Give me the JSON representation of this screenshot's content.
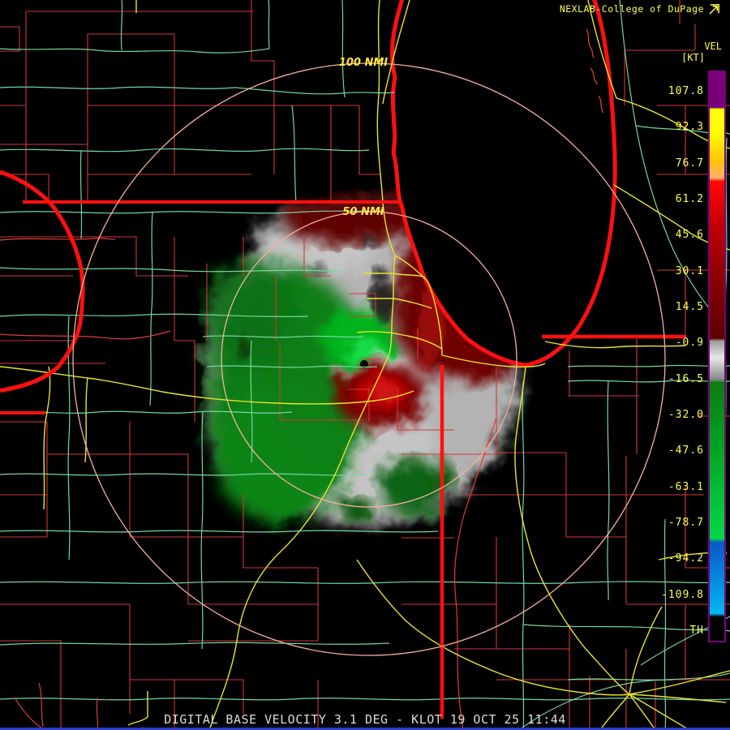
{
  "header": {
    "brand": "NEXLAB-College of DuPage",
    "logo_icon": "cod-arrow-icon"
  },
  "scale": {
    "title": "VEL",
    "units": "[KT]",
    "ticks": [
      "107.8",
      "92.3",
      "76.7",
      "61.2",
      "45.6",
      "30.1",
      "14.5",
      "-0.9",
      "-16.5",
      "-32.0",
      "-47.6",
      "-63.1",
      "-78.7",
      "-94.2",
      "-109.8",
      "TH"
    ],
    "palette": {
      "high_purple": "#7a007a",
      "yellow": "#ffff00",
      "orange": "#ffb06e",
      "red": "#ff0a00",
      "dark_red": "#5a0000",
      "zero_gray": "#e8e8e8",
      "dark_green": "#0b7c10",
      "bright_green": "#00d944",
      "blue": "#0a58c8",
      "cyan_blue": "#00b6f2",
      "threshold_black": "#000000",
      "border": "#7a0080"
    }
  },
  "map": {
    "range_rings": [
      {
        "label": "100 NMI"
      },
      {
        "label": "50 NMI"
      }
    ],
    "colors": {
      "background": "#000000",
      "county_line": "#d23737",
      "highway_yellow": "#e8e42e",
      "road_green": "#74d6a0",
      "thick_red_border": "#ff1010",
      "range_ring": "#f7b09b",
      "velocity_inbound_green": "#00b41e",
      "velocity_outbound_red": "#7e0000",
      "ground_clutter_white": "#bdbdbd"
    }
  },
  "footer": {
    "product_title": "DIGITAL BASE VELOCITY 3.1 DEG - KLOT 19 OCT 25 11:44"
  }
}
